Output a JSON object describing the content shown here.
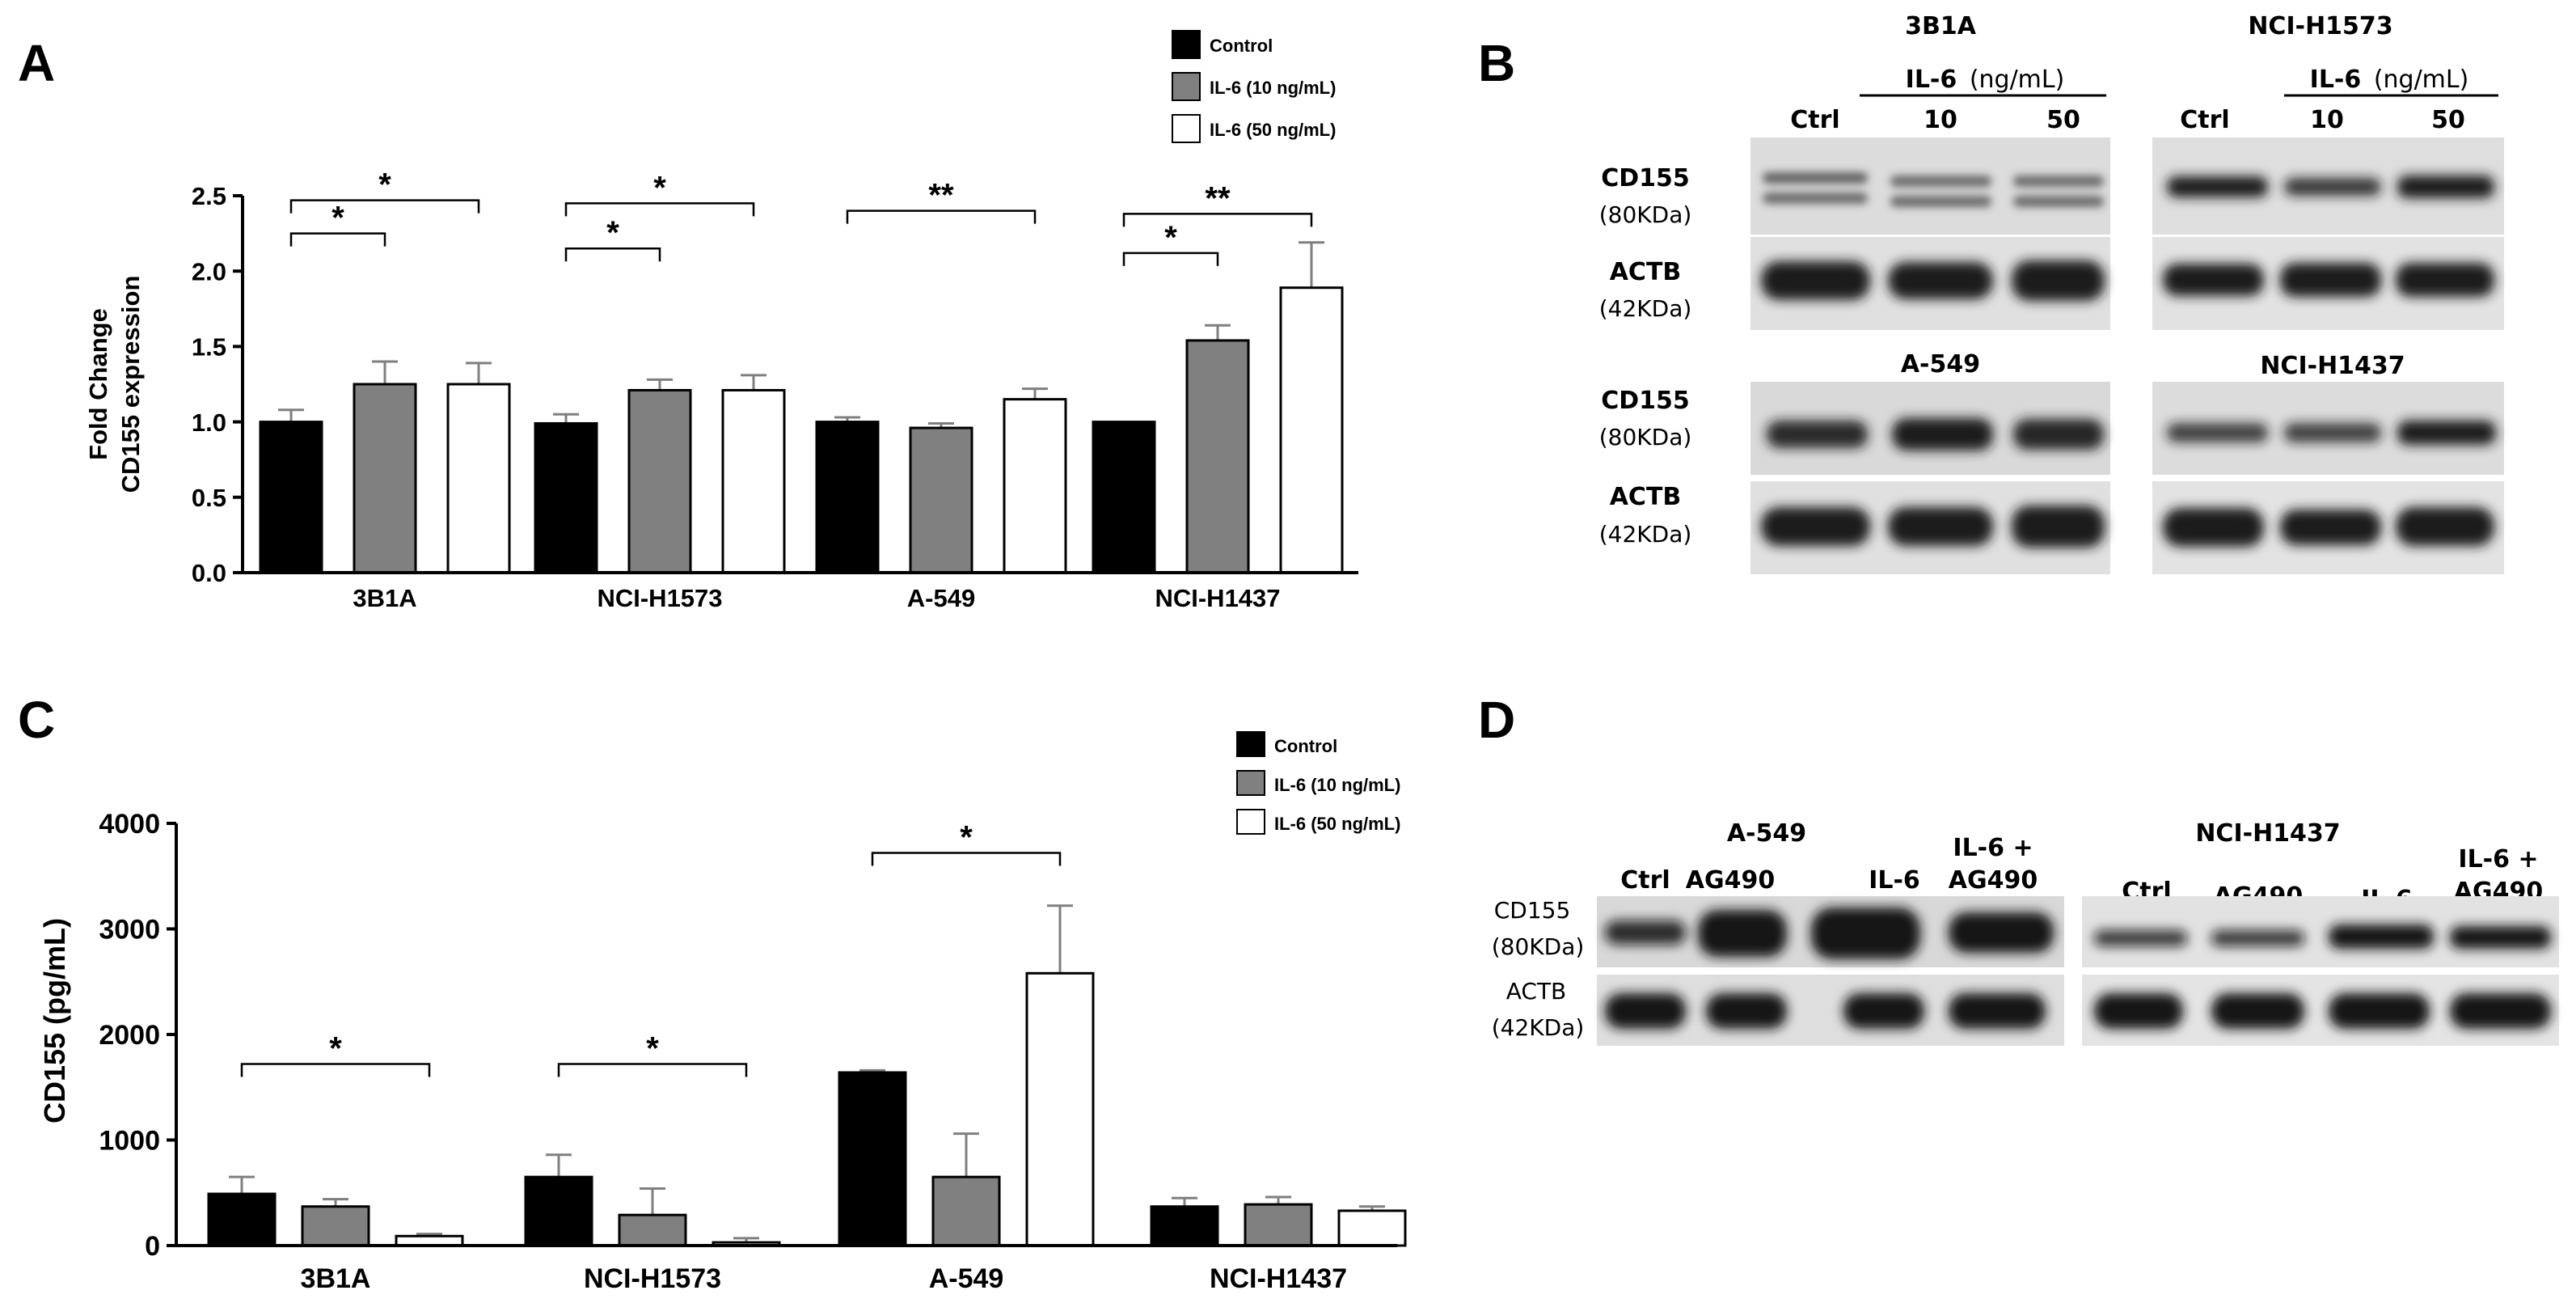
{
  "panel_labels": {
    "a": "A",
    "b": "B",
    "c": "C",
    "d": "D"
  },
  "colors": {
    "control": "#000000",
    "il6_10": "#808080",
    "il6_50": "#ffffff",
    "error": "#7f7f7f"
  },
  "chart_data": [
    {
      "panel": "A",
      "type": "bar",
      "ylabel": "Fold Change CD155 expression",
      "ylabel_lines": [
        "Fold Change",
        "CD155 expression"
      ],
      "ylim": [
        0,
        2.5
      ],
      "yticks": [
        0.0,
        0.5,
        1.0,
        1.5,
        2.0,
        2.5
      ],
      "ytick_labels": [
        "0.0",
        "0.5",
        "1.0",
        "1.5",
        "2.0",
        "2.5"
      ],
      "legend_position": "top-right",
      "categories": [
        "3B1A",
        "NCI-H1573",
        "A-549",
        "NCI-H1437"
      ],
      "series": [
        {
          "name": "Control",
          "values": [
            1.0,
            0.99,
            1.0,
            1.0
          ],
          "errors": [
            0.08,
            0.06,
            0.03,
            0.0
          ]
        },
        {
          "name": "IL-6 (10 ng/mL)",
          "values": [
            1.25,
            1.21,
            0.96,
            1.54
          ],
          "errors": [
            0.15,
            0.07,
            0.03,
            0.1
          ]
        },
        {
          "name": "IL-6 (50 ng/mL)",
          "values": [
            1.25,
            1.21,
            1.15,
            1.89
          ],
          "errors": [
            0.14,
            0.1,
            0.07,
            0.3
          ]
        }
      ],
      "significance": [
        {
          "group": 0,
          "from": 0,
          "to": 1,
          "level": 2.25,
          "label": "*"
        },
        {
          "group": 0,
          "from": 0,
          "to": 2,
          "level": 2.47,
          "label": "*"
        },
        {
          "group": 1,
          "from": 0,
          "to": 1,
          "level": 2.15,
          "label": "*"
        },
        {
          "group": 1,
          "from": 0,
          "to": 2,
          "level": 2.45,
          "label": "*"
        },
        {
          "group": 2,
          "from": 0,
          "to": 2,
          "level": 2.4,
          "label": "**"
        },
        {
          "group": 3,
          "from": 0,
          "to": 1,
          "level": 2.12,
          "label": "*"
        },
        {
          "group": 3,
          "from": 0,
          "to": 2,
          "level": 2.38,
          "label": "**"
        }
      ]
    },
    {
      "panel": "C",
      "type": "bar",
      "ylabel": "CD155 (pg/mL)",
      "ylim": [
        0,
        4000
      ],
      "yticks": [
        0,
        1000,
        2000,
        3000,
        4000
      ],
      "ytick_labels": [
        "0",
        "1000",
        "2000",
        "3000",
        "4000"
      ],
      "legend_position": "top-right",
      "categories": [
        "3B1A",
        "NCI-H1573",
        "A-549",
        "NCI-H1437"
      ],
      "series": [
        {
          "name": "Control",
          "values": [
            490,
            650,
            1640,
            370
          ],
          "errors": [
            160,
            210,
            20,
            80
          ]
        },
        {
          "name": "IL-6 (10 ng/mL)",
          "values": [
            370,
            290,
            650,
            390
          ],
          "errors": [
            70,
            250,
            410,
            70
          ]
        },
        {
          "name": "IL-6 (50 ng/mL)",
          "values": [
            90,
            30,
            2580,
            330
          ],
          "errors": [
            20,
            40,
            640,
            40
          ]
        }
      ],
      "significance": [
        {
          "group": 0,
          "from": 0,
          "to": 2,
          "level": 1720,
          "label": "*"
        },
        {
          "group": 1,
          "from": 0,
          "to": 2,
          "level": 1720,
          "label": "*"
        },
        {
          "group": 2,
          "from": 0,
          "to": 2,
          "level": 3720,
          "label": "*"
        }
      ]
    }
  ],
  "blot_b": {
    "row_labels": [
      {
        "name": "CD155",
        "mw": "(80KDa)"
      },
      {
        "name": "ACTB",
        "mw": "(42KDa)"
      },
      {
        "name": "CD155",
        "mw": "(80KDa)"
      },
      {
        "name": "ACTB",
        "mw": "(42KDa)"
      }
    ],
    "cell_lines": [
      "3B1A",
      "NCI-H1573",
      "A-549",
      "NCI-H1437"
    ],
    "lanes": [
      "Ctrl",
      "10",
      "50"
    ],
    "treatment": "IL-6",
    "unit": "(ng/mL)"
  },
  "blot_d": {
    "row_labels": [
      {
        "name": "CD155",
        "mw": "(80KDa)"
      },
      {
        "name": "ACTB",
        "mw": "(42KDa)"
      }
    ],
    "cell_lines": [
      "A-549",
      "NCI-H1437"
    ],
    "lanes": [
      "Ctrl",
      "AG490",
      "IL-6",
      "IL-6 +",
      "AG490"
    ]
  }
}
